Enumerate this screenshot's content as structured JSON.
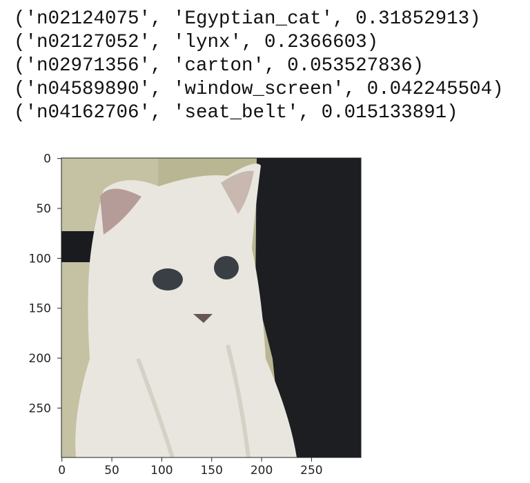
{
  "output": {
    "lines": [
      "('n02124075', 'Egyptian_cat', 0.31852913)",
      "('n02127052', 'lynx', 0.2366603)",
      "('n02971356', 'carton', 0.053527836)",
      "('n04589890', 'window_screen', 0.042245504)",
      "('n04162706', 'seat_belt', 0.015133891)"
    ]
  },
  "plot": {
    "xlim": [
      -0.5,
      299.5
    ],
    "ylim": [
      299.5,
      -0.5
    ],
    "xticks": [
      0,
      50,
      100,
      150,
      200,
      250
    ],
    "yticks": [
      0,
      50,
      100,
      150,
      200,
      250
    ]
  }
}
